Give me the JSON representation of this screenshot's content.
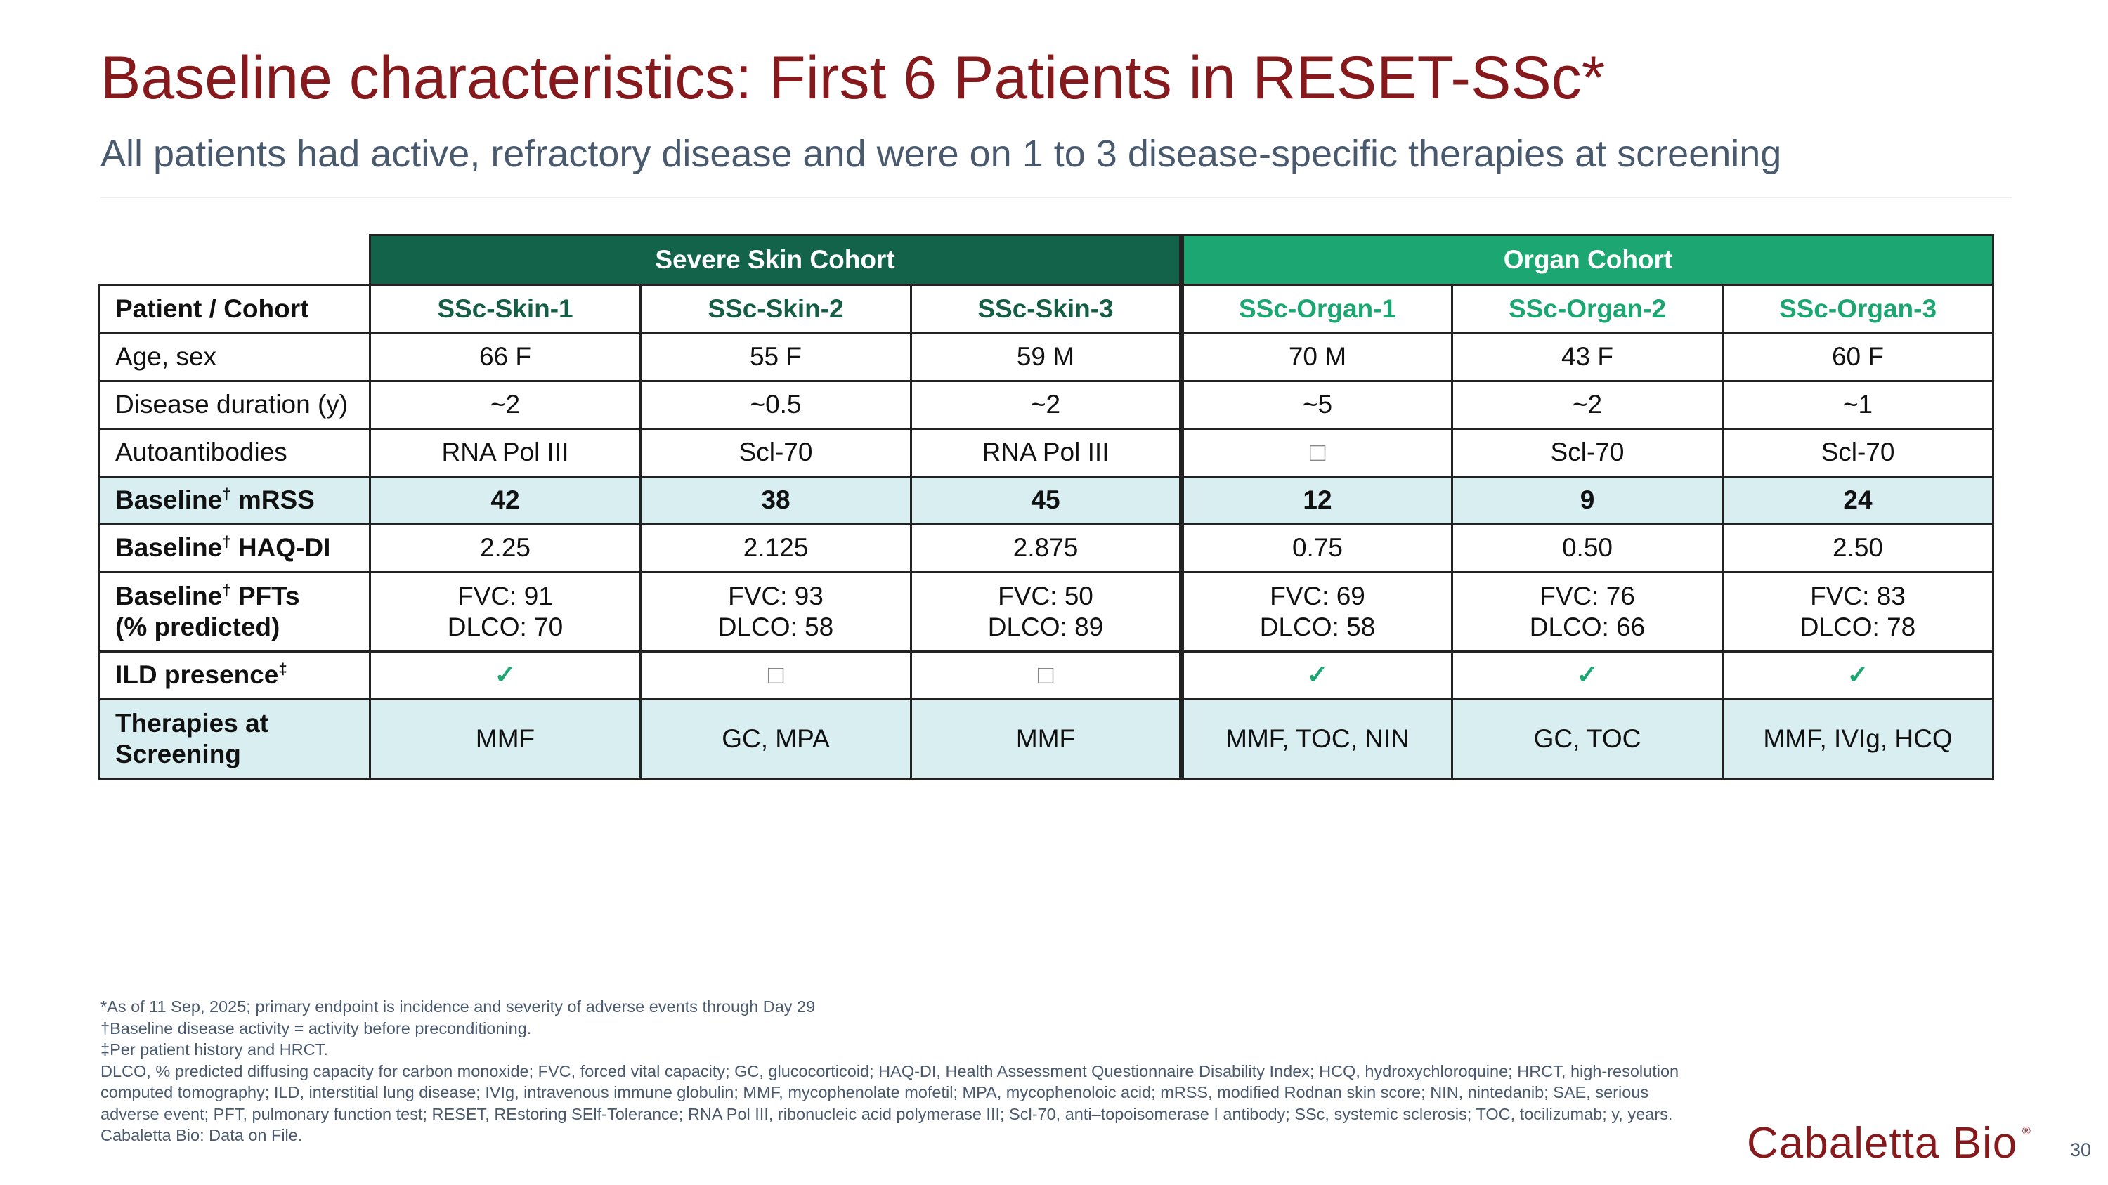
{
  "header": {
    "title": "Baseline characteristics: First 6 Patients in RESET-SSc*",
    "subtitle": "All patients had active, refractory disease and were on 1 to 3 disease-specific therapies at screening"
  },
  "table": {
    "groups": [
      "Severe Skin Cohort",
      "Organ Cohort"
    ],
    "columns": [
      "Patient / Cohort",
      "SSc-Skin-1",
      "SSc-Skin-2",
      "SSc-Skin-3",
      "SSc-Organ-1",
      "SSc-Organ-2",
      "SSc-Organ-3"
    ],
    "rows": [
      [
        "Age, sex",
        "66 F",
        "55 F",
        "59 M",
        "70 M",
        "43 F",
        "60 F"
      ],
      [
        "Disease duration (y)",
        "~2",
        "~0.5",
        "~2",
        "~5",
        "~2",
        "~1"
      ],
      [
        "Autoantibodies",
        "RNA Pol III",
        "Scl-70",
        "RNA Pol III",
        "□",
        "Scl-70",
        "Scl-70"
      ],
      [
        "Baseline† mRSS",
        "42",
        "38",
        "45",
        "12",
        "9",
        "24"
      ],
      [
        "Baseline† HAQ-DI",
        "2.25",
        "2.125",
        "2.875",
        "0.75",
        "0.50",
        "2.50"
      ],
      [
        "Baseline† PFTs\n(% predicted)",
        "FVC: 91\nDLCO: 70",
        "FVC: 93\nDLCO: 58",
        "FVC: 50\nDLCO: 89",
        "FVC: 69\nDLCO: 58",
        "FVC: 76\nDLCO: 66",
        "FVC: 83\nDLCO: 78"
      ],
      [
        "ILD presence‡",
        "✓",
        "□",
        "□",
        "✓",
        "✓",
        "✓"
      ],
      [
        "Therapies at Screening",
        "MMF",
        "GC, MPA",
        "MMF",
        "MMF, TOC, NIN",
        "GC, TOC",
        "MMF, IVIg, HCQ"
      ]
    ]
  },
  "footnotes": [
    "*As of 11 Sep, 2025; primary endpoint is incidence and severity of adverse events through Day 29",
    "†Baseline disease activity = activity before preconditioning.",
    "‡Per patient history and HRCT.",
    "DLCO, % predicted diffusing capacity for carbon monoxide; FVC, forced vital capacity; GC, glucocorticoid; HAQ-DI, Health Assessment Questionnaire Disability Index; HCQ, hydroxychloroquine; HRCT, high-resolution computed tomography; ILD, interstitial lung disease; IVIg, intravenous immune globulin; MMF, mycophenolate mofetil; MPA, mycophenoloic acid; mRSS, modified Rodnan skin score; NIN, nintedanib; SAE, serious adverse event; PFT, pulmonary function test;  RESET, REstoring SElf-Tolerance; RNA Pol III, ribonucleic acid polymerase III; Scl-70, anti–topoisomerase I antibody; SSc, systemic sclerosis; TOC, tocilizumab; y, years.",
    "Cabaletta Bio: Data on File."
  ],
  "logo": "Cabaletta Bio",
  "page_number": "30"
}
